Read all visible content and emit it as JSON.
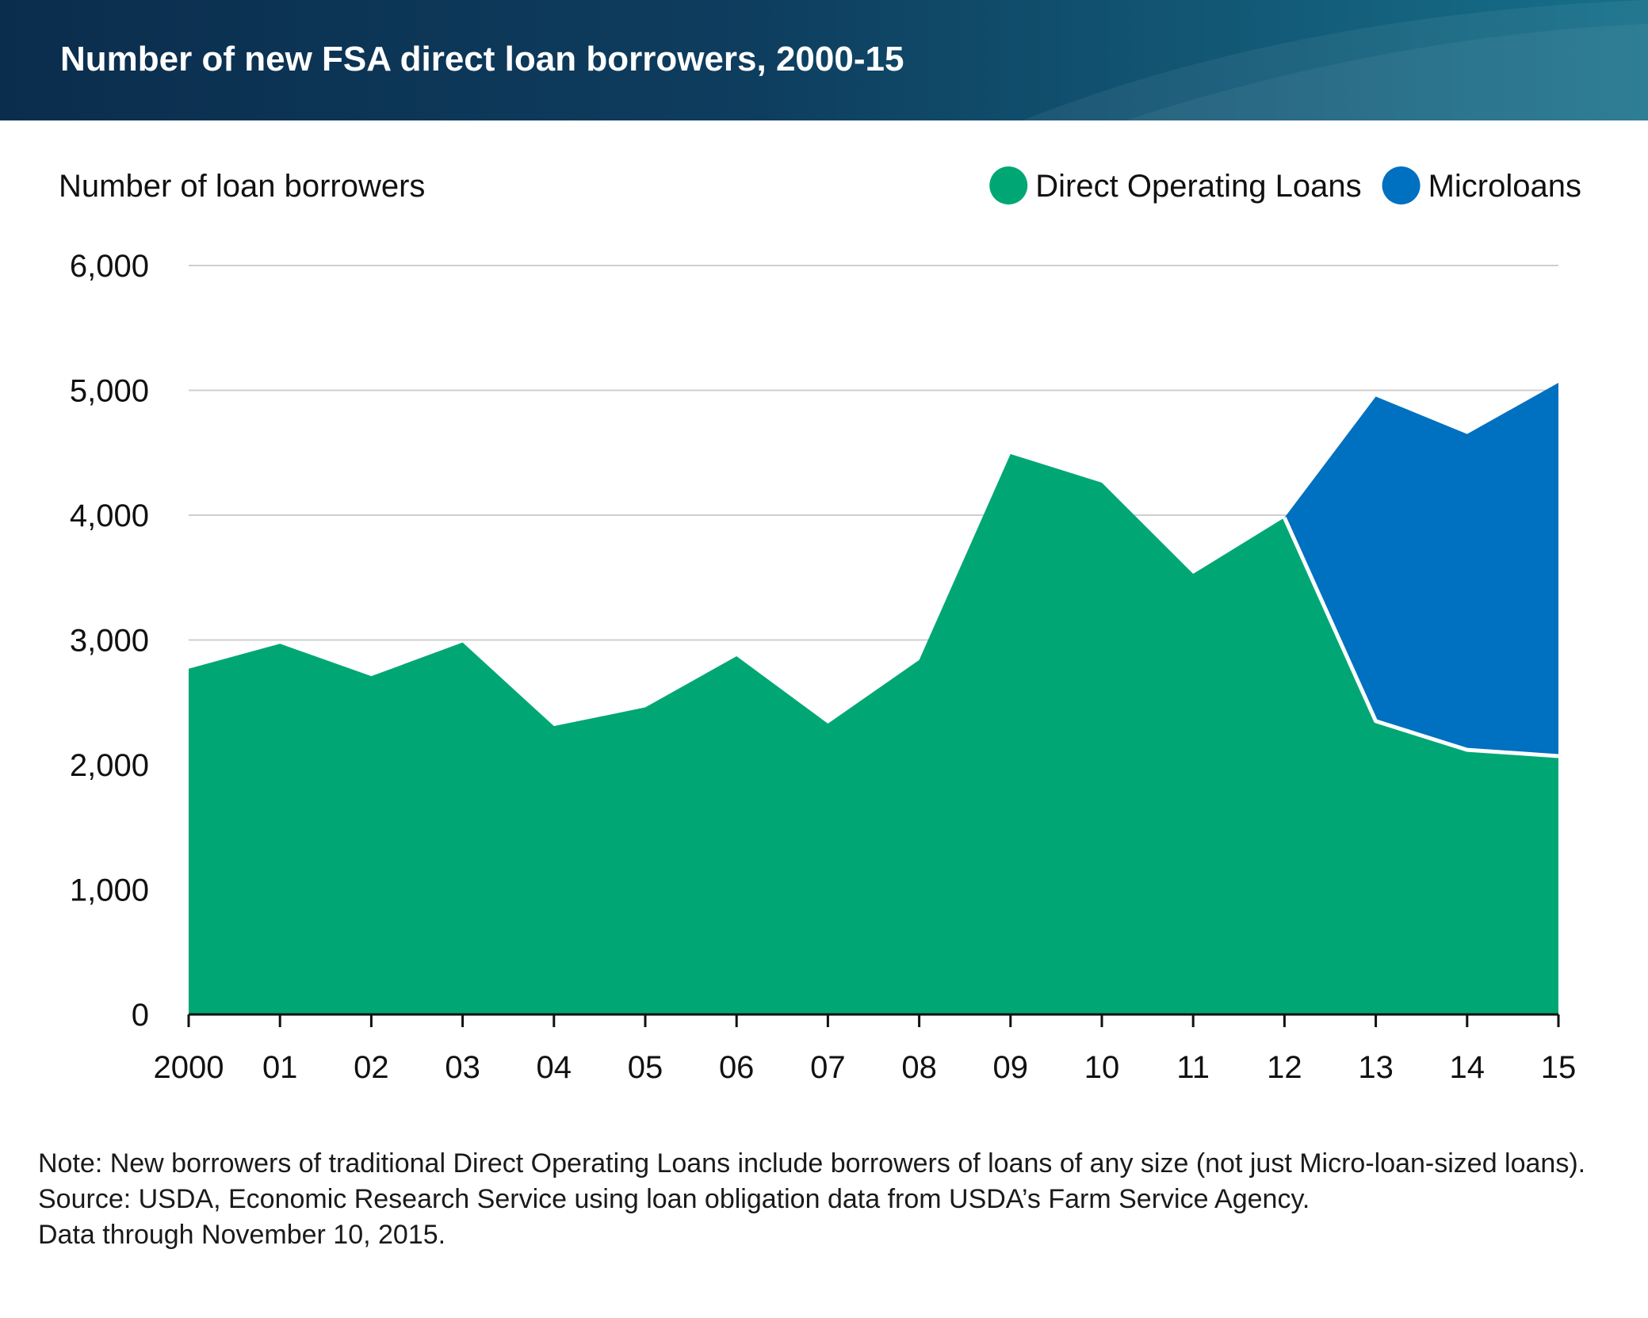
{
  "header": {
    "title": "Number of new FSA direct loan borrowers, 2000-15"
  },
  "chart_data": {
    "type": "area",
    "stacked": true,
    "ylabel": "Number of loan borrowers",
    "xlabel": "",
    "x": [
      2000,
      2001,
      2002,
      2003,
      2004,
      2005,
      2006,
      2007,
      2008,
      2009,
      2010,
      2011,
      2012,
      2013,
      2014,
      2015
    ],
    "x_tick_labels": [
      "2000",
      "01",
      "02",
      "03",
      "04",
      "05",
      "06",
      "07",
      "08",
      "09",
      "10",
      "11",
      "12",
      "13",
      "14",
      "15"
    ],
    "ylim": [
      0,
      6000
    ],
    "y_ticks": [
      0,
      1000,
      2000,
      3000,
      4000,
      5000,
      6000
    ],
    "y_tick_labels": [
      "0",
      "1,000",
      "2,000",
      "3,000",
      "4,000",
      "5,000",
      "6,000"
    ],
    "grid": true,
    "legend_position": "top-right",
    "series": [
      {
        "name": "Direct Operating Loans",
        "color": "#00a775",
        "values": [
          2770,
          2970,
          2710,
          2980,
          2310,
          2460,
          2870,
          2330,
          2840,
          4490,
          4260,
          3530,
          3980,
          2350,
          2120,
          2070
        ]
      },
      {
        "name": "Microloans",
        "color": "#0070c0",
        "values": [
          0,
          0,
          0,
          0,
          0,
          0,
          0,
          0,
          0,
          0,
          0,
          0,
          0,
          2600,
          2530,
          2990
        ]
      }
    ]
  },
  "notes": {
    "note": "Note: New borrowers of traditional Direct Operating Loans include borrowers of loans of any size (not just Micro-loan-sized loans).",
    "source": "Source: USDA, Economic Research Service using loan obligation data from USDA’s Farm Service Agency.",
    "data_through": "Data through November 10, 2015."
  }
}
